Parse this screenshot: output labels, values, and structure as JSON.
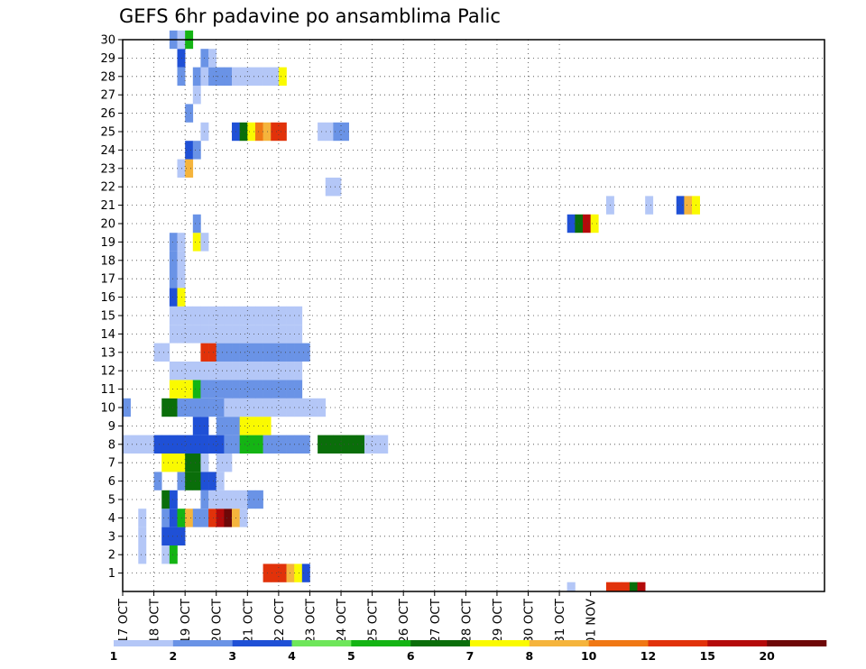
{
  "chart_data": {
    "type": "heatmap",
    "title": "GEFS 6hr padavine po ansamblima Palic",
    "x_start": "17 OCT",
    "x_step": "6 hours",
    "x_steps": 90,
    "x_ticks": [
      "17 OCT",
      "18 OCT",
      "19 OCT",
      "20 OCT",
      "21 OCT",
      "22 OCT",
      "23 OCT",
      "24 OCT",
      "25 OCT",
      "26 OCT",
      "27 OCT",
      "28 OCT",
      "29 OCT",
      "30 OCT",
      "31 OCT",
      "01 NOV"
    ],
    "y_ticks": [
      1,
      2,
      3,
      4,
      5,
      6,
      7,
      8,
      9,
      10,
      11,
      12,
      13,
      14,
      15,
      16,
      17,
      18,
      19,
      20,
      21,
      22,
      23,
      24,
      25,
      26,
      27,
      28,
      29,
      30
    ],
    "y_range": [
      0,
      30
    ],
    "grid": true,
    "legend": {
      "placement": "bottom",
      "bounds": [
        "1",
        "2",
        "3",
        "4",
        "5",
        "6",
        "7",
        "8",
        "10",
        "12",
        "15",
        "20"
      ],
      "colors": [
        "#b4c7f7",
        "#6a93e6",
        "#1f50d6",
        "#6ee65a",
        "#14b414",
        "#0a6e0a",
        "#fafa00",
        "#f5b43c",
        "#f07814",
        "#e1320a",
        "#b40a0a",
        "#6e0808"
      ]
    },
    "cells": [
      {
        "m": 0,
        "t": 57,
        "c": 0
      },
      {
        "m": 0,
        "t": 62,
        "c": 9
      },
      {
        "m": 0,
        "t": 63,
        "c": 9
      },
      {
        "m": 0,
        "t": 64,
        "c": 9
      },
      {
        "m": 0,
        "t": 65,
        "c": 5
      },
      {
        "m": 0,
        "t": 66,
        "c": 10
      },
      {
        "m": 1,
        "t": 18,
        "c": 9
      },
      {
        "m": 1,
        "t": 19,
        "c": 9
      },
      {
        "m": 1,
        "t": 20,
        "c": 9
      },
      {
        "m": 1,
        "t": 21,
        "c": 7
      },
      {
        "m": 1,
        "t": 22,
        "c": 6
      },
      {
        "m": 1,
        "t": 23,
        "c": 2
      },
      {
        "m": 2,
        "t": 2,
        "c": 0
      },
      {
        "m": 2,
        "t": 5,
        "c": 0
      },
      {
        "m": 2,
        "t": 6,
        "c": 4
      },
      {
        "m": 3,
        "t": 2,
        "c": 0
      },
      {
        "m": 3,
        "t": 5,
        "c": 2
      },
      {
        "m": 3,
        "t": 6,
        "c": 2
      },
      {
        "m": 3,
        "t": 7,
        "c": 2
      },
      {
        "m": 4,
        "t": 2,
        "c": 0
      },
      {
        "m": 4,
        "t": 5,
        "c": 1
      },
      {
        "m": 4,
        "t": 6,
        "c": 2
      },
      {
        "m": 4,
        "t": 7,
        "c": 4
      },
      {
        "m": 4,
        "t": 8,
        "c": 7
      },
      {
        "m": 4,
        "t": 9,
        "c": 1
      },
      {
        "m": 4,
        "t": 10,
        "c": 1
      },
      {
        "m": 4,
        "t": 11,
        "c": 9
      },
      {
        "m": 4,
        "t": 12,
        "c": 10
      },
      {
        "m": 4,
        "t": 13,
        "c": 11
      },
      {
        "m": 4,
        "t": 14,
        "c": 7
      },
      {
        "m": 4,
        "t": 15,
        "c": 0
      },
      {
        "m": 5,
        "t": 5,
        "c": 5
      },
      {
        "m": 5,
        "t": 6,
        "c": 2
      },
      {
        "m": 5,
        "t": 10,
        "c": 1
      },
      {
        "m": 5,
        "t": 11,
        "c": 0
      },
      {
        "m": 5,
        "t": 12,
        "c": 0
      },
      {
        "m": 5,
        "t": 13,
        "c": 0
      },
      {
        "m": 5,
        "t": 14,
        "c": 0
      },
      {
        "m": 5,
        "t": 15,
        "c": 0
      },
      {
        "m": 5,
        "t": 16,
        "c": 1
      },
      {
        "m": 5,
        "t": 17,
        "c": 1
      },
      {
        "m": 6,
        "t": 4,
        "c": 1
      },
      {
        "m": 6,
        "t": 7,
        "c": 1
      },
      {
        "m": 6,
        "t": 8,
        "c": 5
      },
      {
        "m": 6,
        "t": 9,
        "c": 5
      },
      {
        "m": 6,
        "t": 10,
        "c": 2
      },
      {
        "m": 6,
        "t": 11,
        "c": 2
      },
      {
        "m": 6,
        "t": 12,
        "c": 0
      },
      {
        "m": 7,
        "t": 5,
        "c": 6
      },
      {
        "m": 7,
        "t": 6,
        "c": 6
      },
      {
        "m": 7,
        "t": 7,
        "c": 6
      },
      {
        "m": 7,
        "t": 8,
        "c": 5
      },
      {
        "m": 7,
        "t": 9,
        "c": 5
      },
      {
        "m": 7,
        "t": 10,
        "c": 0
      },
      {
        "m": 7,
        "t": 12,
        "c": 0
      },
      {
        "m": 7,
        "t": 13,
        "c": 0
      },
      {
        "m": 8,
        "t": 0,
        "c": 0
      },
      {
        "m": 8,
        "t": 1,
        "c": 0
      },
      {
        "m": 8,
        "t": 2,
        "c": 0
      },
      {
        "m": 8,
        "t": 3,
        "c": 0
      },
      {
        "m": 8,
        "t": 4,
        "c": 2
      },
      {
        "m": 8,
        "t": 5,
        "c": 2
      },
      {
        "m": 8,
        "t": 6,
        "c": 2
      },
      {
        "m": 8,
        "t": 7,
        "c": 2
      },
      {
        "m": 8,
        "t": 8,
        "c": 2
      },
      {
        "m": 8,
        "t": 9,
        "c": 2
      },
      {
        "m": 8,
        "t": 10,
        "c": 2
      },
      {
        "m": 8,
        "t": 11,
        "c": 2
      },
      {
        "m": 8,
        "t": 12,
        "c": 2
      },
      {
        "m": 8,
        "t": 13,
        "c": 1
      },
      {
        "m": 8,
        "t": 14,
        "c": 1
      },
      {
        "m": 8,
        "t": 15,
        "c": 4
      },
      {
        "m": 8,
        "t": 16,
        "c": 4
      },
      {
        "m": 8,
        "t": 17,
        "c": 4
      },
      {
        "m": 8,
        "t": 18,
        "c": 1
      },
      {
        "m": 8,
        "t": 19,
        "c": 1
      },
      {
        "m": 8,
        "t": 20,
        "c": 1
      },
      {
        "m": 8,
        "t": 21,
        "c": 1
      },
      {
        "m": 8,
        "t": 22,
        "c": 1
      },
      {
        "m": 8,
        "t": 23,
        "c": 1
      },
      {
        "m": 8,
        "t": 25,
        "c": 5
      },
      {
        "m": 8,
        "t": 26,
        "c": 5
      },
      {
        "m": 8,
        "t": 27,
        "c": 5
      },
      {
        "m": 8,
        "t": 28,
        "c": 5
      },
      {
        "m": 8,
        "t": 29,
        "c": 5
      },
      {
        "m": 8,
        "t": 30,
        "c": 5
      },
      {
        "m": 8,
        "t": 31,
        "c": 0
      },
      {
        "m": 8,
        "t": 32,
        "c": 0
      },
      {
        "m": 8,
        "t": 33,
        "c": 0
      },
      {
        "m": 9,
        "t": 9,
        "c": 2
      },
      {
        "m": 9,
        "t": 10,
        "c": 2
      },
      {
        "m": 9,
        "t": 12,
        "c": 1
      },
      {
        "m": 9,
        "t": 13,
        "c": 1
      },
      {
        "m": 9,
        "t": 14,
        "c": 1
      },
      {
        "m": 9,
        "t": 15,
        "c": 6
      },
      {
        "m": 9,
        "t": 16,
        "c": 6
      },
      {
        "m": 9,
        "t": 17,
        "c": 6
      },
      {
        "m": 9,
        "t": 18,
        "c": 6
      },
      {
        "m": 10,
        "t": 0,
        "c": 1
      },
      {
        "m": 10,
        "t": 5,
        "c": 5
      },
      {
        "m": 10,
        "t": 6,
        "c": 5
      },
      {
        "m": 10,
        "t": 7,
        "c": 1
      },
      {
        "m": 10,
        "t": 8,
        "c": 1
      },
      {
        "m": 10,
        "t": 9,
        "c": 1
      },
      {
        "m": 10,
        "t": 10,
        "c": 1
      },
      {
        "m": 10,
        "t": 11,
        "c": 1
      },
      {
        "m": 10,
        "t": 12,
        "c": 1
      },
      {
        "m": 10,
        "t": 13,
        "c": 0
      },
      {
        "m": 10,
        "t": 14,
        "c": 0
      },
      {
        "m": 10,
        "t": 15,
        "c": 0
      },
      {
        "m": 10,
        "t": 16,
        "c": 0
      },
      {
        "m": 10,
        "t": 17,
        "c": 0
      },
      {
        "m": 10,
        "t": 18,
        "c": 0
      },
      {
        "m": 10,
        "t": 19,
        "c": 0
      },
      {
        "m": 10,
        "t": 20,
        "c": 0
      },
      {
        "m": 10,
        "t": 21,
        "c": 0
      },
      {
        "m": 10,
        "t": 22,
        "c": 0
      },
      {
        "m": 10,
        "t": 23,
        "c": 0
      },
      {
        "m": 10,
        "t": 24,
        "c": 0
      },
      {
        "m": 10,
        "t": 25,
        "c": 0
      },
      {
        "m": 11,
        "t": 6,
        "c": 6
      },
      {
        "m": 11,
        "t": 7,
        "c": 6
      },
      {
        "m": 11,
        "t": 8,
        "c": 6
      },
      {
        "m": 11,
        "t": 9,
        "c": 4
      },
      {
        "m": 11,
        "t": 10,
        "c": 1
      },
      {
        "m": 11,
        "t": 11,
        "c": 1
      },
      {
        "m": 11,
        "t": 12,
        "c": 1
      },
      {
        "m": 11,
        "t": 13,
        "c": 1
      },
      {
        "m": 11,
        "t": 14,
        "c": 1
      },
      {
        "m": 11,
        "t": 15,
        "c": 1
      },
      {
        "m": 11,
        "t": 16,
        "c": 1
      },
      {
        "m": 11,
        "t": 17,
        "c": 1
      },
      {
        "m": 11,
        "t": 18,
        "c": 1
      },
      {
        "m": 11,
        "t": 19,
        "c": 1
      },
      {
        "m": 11,
        "t": 20,
        "c": 1
      },
      {
        "m": 11,
        "t": 21,
        "c": 1
      },
      {
        "m": 11,
        "t": 22,
        "c": 1
      },
      {
        "m": 12,
        "t": 6,
        "c": 0
      },
      {
        "m": 12,
        "t": 7,
        "c": 0
      },
      {
        "m": 12,
        "t": 8,
        "c": 0
      },
      {
        "m": 12,
        "t": 9,
        "c": 0
      },
      {
        "m": 12,
        "t": 10,
        "c": 0
      },
      {
        "m": 12,
        "t": 11,
        "c": 0
      },
      {
        "m": 12,
        "t": 12,
        "c": 0
      },
      {
        "m": 12,
        "t": 13,
        "c": 0
      },
      {
        "m": 12,
        "t": 14,
        "c": 0
      },
      {
        "m": 12,
        "t": 15,
        "c": 0
      },
      {
        "m": 12,
        "t": 16,
        "c": 0
      },
      {
        "m": 12,
        "t": 17,
        "c": 0
      },
      {
        "m": 12,
        "t": 18,
        "c": 0
      },
      {
        "m": 12,
        "t": 19,
        "c": 0
      },
      {
        "m": 12,
        "t": 20,
        "c": 0
      },
      {
        "m": 12,
        "t": 21,
        "c": 0
      },
      {
        "m": 12,
        "t": 22,
        "c": 0
      },
      {
        "m": 13,
        "t": 4,
        "c": 0
      },
      {
        "m": 13,
        "t": 5,
        "c": 0
      },
      {
        "m": 13,
        "t": 10,
        "c": 9
      },
      {
        "m": 13,
        "t": 11,
        "c": 9
      },
      {
        "m": 13,
        "t": 12,
        "c": 1
      },
      {
        "m": 13,
        "t": 13,
        "c": 1
      },
      {
        "m": 13,
        "t": 14,
        "c": 1
      },
      {
        "m": 13,
        "t": 15,
        "c": 1
      },
      {
        "m": 13,
        "t": 16,
        "c": 1
      },
      {
        "m": 13,
        "t": 17,
        "c": 1
      },
      {
        "m": 13,
        "t": 18,
        "c": 1
      },
      {
        "m": 13,
        "t": 19,
        "c": 1
      },
      {
        "m": 13,
        "t": 20,
        "c": 1
      },
      {
        "m": 13,
        "t": 21,
        "c": 1
      },
      {
        "m": 13,
        "t": 22,
        "c": 1
      },
      {
        "m": 13,
        "t": 23,
        "c": 1
      },
      {
        "m": 14,
        "t": 6,
        "c": 0
      },
      {
        "m": 14,
        "t": 7,
        "c": 0
      },
      {
        "m": 14,
        "t": 8,
        "c": 0
      },
      {
        "m": 14,
        "t": 9,
        "c": 0
      },
      {
        "m": 14,
        "t": 10,
        "c": 0
      },
      {
        "m": 14,
        "t": 11,
        "c": 0
      },
      {
        "m": 14,
        "t": 12,
        "c": 0
      },
      {
        "m": 14,
        "t": 13,
        "c": 0
      },
      {
        "m": 14,
        "t": 14,
        "c": 0
      },
      {
        "m": 14,
        "t": 15,
        "c": 0
      },
      {
        "m": 14,
        "t": 16,
        "c": 0
      },
      {
        "m": 14,
        "t": 17,
        "c": 0
      },
      {
        "m": 14,
        "t": 18,
        "c": 0
      },
      {
        "m": 14,
        "t": 19,
        "c": 0
      },
      {
        "m": 14,
        "t": 20,
        "c": 0
      },
      {
        "m": 14,
        "t": 21,
        "c": 0
      },
      {
        "m": 14,
        "t": 22,
        "c": 0
      },
      {
        "m": 15,
        "t": 6,
        "c": 0
      },
      {
        "m": 15,
        "t": 7,
        "c": 0
      },
      {
        "m": 15,
        "t": 8,
        "c": 0
      },
      {
        "m": 15,
        "t": 9,
        "c": 0
      },
      {
        "m": 15,
        "t": 10,
        "c": 0
      },
      {
        "m": 15,
        "t": 11,
        "c": 0
      },
      {
        "m": 15,
        "t": 12,
        "c": 0
      },
      {
        "m": 15,
        "t": 13,
        "c": 0
      },
      {
        "m": 15,
        "t": 14,
        "c": 0
      },
      {
        "m": 15,
        "t": 15,
        "c": 0
      },
      {
        "m": 15,
        "t": 16,
        "c": 0
      },
      {
        "m": 15,
        "t": 17,
        "c": 0
      },
      {
        "m": 15,
        "t": 18,
        "c": 0
      },
      {
        "m": 15,
        "t": 19,
        "c": 0
      },
      {
        "m": 15,
        "t": 20,
        "c": 0
      },
      {
        "m": 15,
        "t": 21,
        "c": 0
      },
      {
        "m": 15,
        "t": 22,
        "c": 0
      },
      {
        "m": 16,
        "t": 6,
        "c": 2
      },
      {
        "m": 16,
        "t": 7,
        "c": 6
      },
      {
        "m": 17,
        "t": 6,
        "c": 1
      },
      {
        "m": 17,
        "t": 7,
        "c": 0
      },
      {
        "m": 18,
        "t": 6,
        "c": 1
      },
      {
        "m": 18,
        "t": 7,
        "c": 0
      },
      {
        "m": 19,
        "t": 6,
        "c": 1
      },
      {
        "m": 19,
        "t": 7,
        "c": 0
      },
      {
        "m": 19,
        "t": 9,
        "c": 6
      },
      {
        "m": 19,
        "t": 10,
        "c": 0
      },
      {
        "m": 20,
        "t": 9,
        "c": 1
      },
      {
        "m": 20,
        "t": 57,
        "c": 2
      },
      {
        "m": 20,
        "t": 58,
        "c": 5
      },
      {
        "m": 20,
        "t": 59,
        "c": 10
      },
      {
        "m": 20,
        "t": 60,
        "c": 6
      },
      {
        "m": 21,
        "t": 62,
        "c": 0
      },
      {
        "m": 21,
        "t": 67,
        "c": 0
      },
      {
        "m": 21,
        "t": 71,
        "c": 2
      },
      {
        "m": 21,
        "t": 72,
        "c": 7
      },
      {
        "m": 21,
        "t": 73,
        "c": 6
      },
      {
        "m": 22,
        "t": 26,
        "c": 0
      },
      {
        "m": 22,
        "t": 27,
        "c": 0
      },
      {
        "m": 23,
        "t": 7,
        "c": 0
      },
      {
        "m": 23,
        "t": 8,
        "c": 7
      },
      {
        "m": 24,
        "t": 8,
        "c": 2
      },
      {
        "m": 24,
        "t": 9,
        "c": 1
      },
      {
        "m": 25,
        "t": 10,
        "c": 0
      },
      {
        "m": 25,
        "t": 14,
        "c": 2
      },
      {
        "m": 25,
        "t": 15,
        "c": 5
      },
      {
        "m": 25,
        "t": 16,
        "c": 6
      },
      {
        "m": 25,
        "t": 17,
        "c": 8
      },
      {
        "m": 25,
        "t": 18,
        "c": 7
      },
      {
        "m": 25,
        "t": 19,
        "c": 9
      },
      {
        "m": 25,
        "t": 20,
        "c": 9
      },
      {
        "m": 25,
        "t": 25,
        "c": 0
      },
      {
        "m": 25,
        "t": 26,
        "c": 0
      },
      {
        "m": 25,
        "t": 27,
        "c": 1
      },
      {
        "m": 25,
        "t": 28,
        "c": 1
      },
      {
        "m": 26,
        "t": 8,
        "c": 1
      },
      {
        "m": 27,
        "t": 9,
        "c": 0
      },
      {
        "m": 28,
        "t": 7,
        "c": 1
      },
      {
        "m": 28,
        "t": 9,
        "c": 1
      },
      {
        "m": 28,
        "t": 10,
        "c": 0
      },
      {
        "m": 28,
        "t": 11,
        "c": 1
      },
      {
        "m": 28,
        "t": 12,
        "c": 1
      },
      {
        "m": 28,
        "t": 13,
        "c": 1
      },
      {
        "m": 28,
        "t": 14,
        "c": 0
      },
      {
        "m": 28,
        "t": 15,
        "c": 0
      },
      {
        "m": 28,
        "t": 16,
        "c": 0
      },
      {
        "m": 28,
        "t": 17,
        "c": 0
      },
      {
        "m": 28,
        "t": 18,
        "c": 0
      },
      {
        "m": 28,
        "t": 19,
        "c": 0
      },
      {
        "m": 28,
        "t": 20,
        "c": 6
      },
      {
        "m": 29,
        "t": 7,
        "c": 2
      },
      {
        "m": 29,
        "t": 10,
        "c": 1
      },
      {
        "m": 29,
        "t": 11,
        "c": 0
      },
      {
        "m": 30,
        "t": 6,
        "c": 1
      },
      {
        "m": 30,
        "t": 7,
        "c": 0
      },
      {
        "m": 30,
        "t": 8,
        "c": 4
      }
    ],
    "cells_note_removed": true
  }
}
